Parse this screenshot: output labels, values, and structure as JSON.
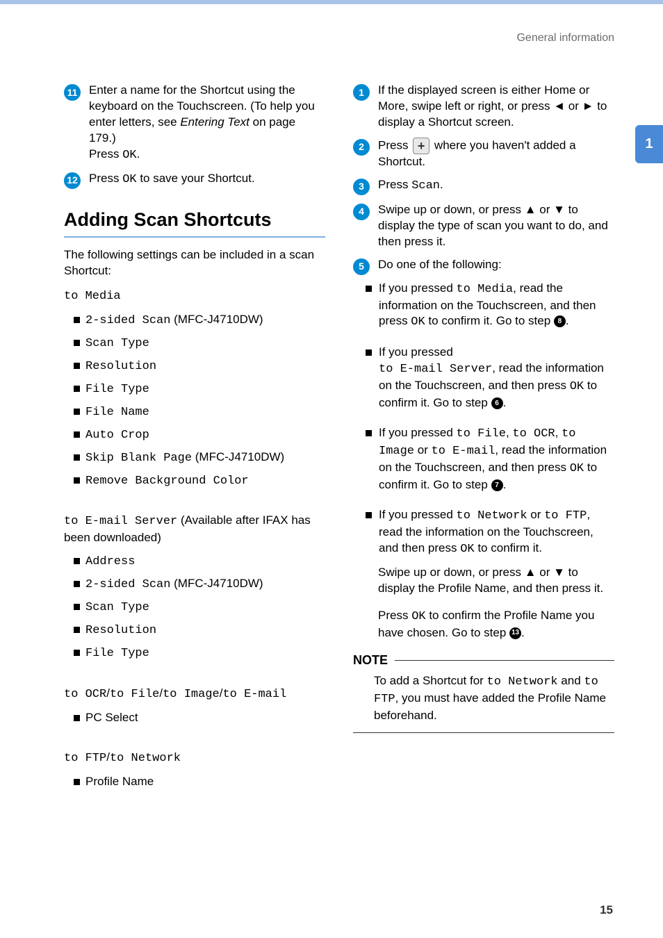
{
  "header": "General information",
  "pageTab": "1",
  "pageNumber": "15",
  "left": {
    "step11": {
      "num": "11",
      "text_a": "Enter a name for the Shortcut using the keyboard on the Touchscreen. (To help you enter letters, see ",
      "italic": "Entering Text",
      "text_b": " on page 179.)",
      "press": "Press ",
      "ok": "OK",
      "dot": "."
    },
    "step12": {
      "num": "12",
      "press": "Press ",
      "ok": "OK",
      "tail": " to save your Shortcut."
    },
    "heading": "Adding Scan Shortcuts",
    "intro": "The following settings can be included in a scan Shortcut:",
    "g1_label": "to Media",
    "g1_items": [
      {
        "mono": "2-sided Scan",
        "tail": " (MFC-J4710DW)"
      },
      {
        "mono": "Scan Type"
      },
      {
        "mono": "Resolution"
      },
      {
        "mono": "File Type"
      },
      {
        "mono": "File Name"
      },
      {
        "mono": "Auto Crop"
      },
      {
        "mono": "Skip Blank Page",
        "tail": " (MFC-J4710DW)"
      },
      {
        "mono": "Remove Background Color"
      }
    ],
    "g2_label_a": "to E-mail Server",
    "g2_label_b": " (Available after IFAX has been downloaded)",
    "g2_items": [
      {
        "mono": "Address"
      },
      {
        "mono": "2-sided Scan",
        "tail": " (MFC-J4710DW)"
      },
      {
        "mono": "Scan Type"
      },
      {
        "mono": "Resolution"
      },
      {
        "mono": "File Type"
      }
    ],
    "g3_a": "to OCR",
    "g3_b": "to File",
    "g3_c": "to Image",
    "g3_d": "to E-mail",
    "g3_item": "PC Select",
    "g4_a": "to FTP",
    "g4_b": "to Network",
    "g4_item": "Profile Name"
  },
  "right": {
    "s1": {
      "num": "1",
      "text": "If the displayed screen is either Home or More, swipe left or right, or press ◄ or ► to display a Shortcut screen."
    },
    "s2": {
      "num": "2",
      "a": "Press ",
      "b": " where you haven't added a Shortcut."
    },
    "s3": {
      "num": "3",
      "a": "Press ",
      "mono": "Scan",
      "b": "."
    },
    "s4": {
      "num": "4",
      "text": "Swipe up or down, or press ▲ or ▼ to display the type of scan you want to do, and then press it."
    },
    "s5": {
      "num": "5",
      "text": "Do one of the following:"
    },
    "b1": {
      "a": "If you pressed ",
      "mono": "to Media",
      "b": ", read the information on the Touchscreen, and then press ",
      "ok": "OK",
      "c": " to confirm it. Go to step ",
      "ref": "8",
      "d": "."
    },
    "b2": {
      "a": "If you pressed ",
      "mono": "to E-mail Server",
      "b": ", read the information on the Touchscreen, and then press ",
      "ok": "OK",
      "c": " to confirm it. Go to step ",
      "ref": "6",
      "d": "."
    },
    "b3": {
      "a": "If you pressed ",
      "m1": "to File",
      "m2": "to OCR",
      "m3": "to Image",
      "m4": "to E-mail",
      "b": ", read the information on the Touchscreen, and then press ",
      "ok": "OK",
      "c": " to confirm it. Go to step ",
      "ref": "7",
      "d": "."
    },
    "b4": {
      "a": "If you pressed ",
      "m1": "to Network",
      "m2": "to FTP",
      "b": ", read the information on the Touchscreen, and then press ",
      "ok": "OK",
      "c": " to confirm it."
    },
    "extra1": "Swipe up or down, or press ▲ or ▼ to display the Profile Name, and then press it.",
    "extra2_a": "Press ",
    "extra2_ok": "OK",
    "extra2_b": " to confirm the Profile Name you have chosen. Go to step ",
    "extra2_ref": "13",
    "extra2_c": ".",
    "note_head": "NOTE",
    "note_a": "To add a Shortcut for ",
    "note_m1": "to Network",
    "note_b": " and ",
    "note_m2": "to FTP",
    "note_c": ", you must have added the Profile Name beforehand."
  }
}
